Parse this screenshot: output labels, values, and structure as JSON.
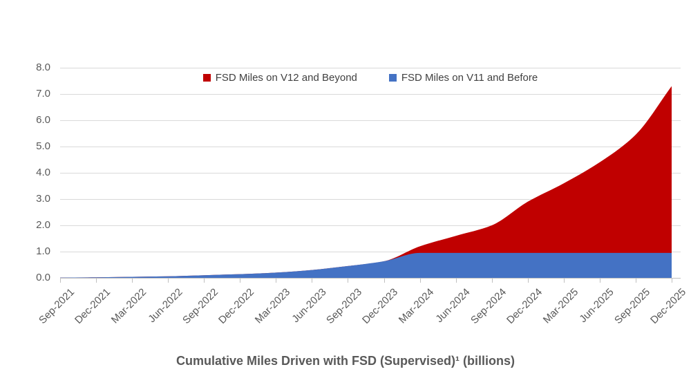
{
  "chart_data": {
    "type": "area",
    "stacked": true,
    "title": "Cumulative Miles Driven with FSD (Supervised)¹ (billions)",
    "categories": [
      "Sep-2021",
      "Dec-2021",
      "Mar-2022",
      "Jun-2022",
      "Sep-2022",
      "Dec-2022",
      "Mar-2023",
      "Jun-2023",
      "Sep-2023",
      "Dec-2023",
      "Mar-2024",
      "Jun-2024",
      "Sep-2024",
      "Dec-2024",
      "Mar-2025",
      "Jun-2025",
      "Sep-2025",
      "Dec-2025"
    ],
    "y_tick_labels": [
      "0.0",
      "1.0",
      "2.0",
      "3.0",
      "4.0",
      "5.0",
      "6.0",
      "7.0",
      "8.0"
    ],
    "ylim": [
      0,
      8
    ],
    "y_step": 1,
    "grid": true,
    "legend_position": "top-center",
    "xlabel": "",
    "ylabel": "",
    "series": [
      {
        "name": "FSD Miles on V12 and Beyond",
        "color": "#C00000",
        "stack_order": "top",
        "values": [
          0,
          0,
          0,
          0,
          0,
          0,
          0,
          0,
          0,
          0,
          0.25,
          0.65,
          1.05,
          1.95,
          2.65,
          3.45,
          4.5,
          6.35
        ]
      },
      {
        "name": "FSD Miles on V11 and Before",
        "color": "#4472C4",
        "stack_order": "bottom",
        "values": [
          0.01,
          0.02,
          0.04,
          0.06,
          0.1,
          0.14,
          0.2,
          0.3,
          0.45,
          0.63,
          0.95,
          0.95,
          0.95,
          0.95,
          0.95,
          0.95,
          0.95,
          0.95
        ]
      }
    ],
    "stacked_totals": [
      0.01,
      0.02,
      0.04,
      0.06,
      0.1,
      0.14,
      0.2,
      0.3,
      0.45,
      0.63,
      1.2,
      1.6,
      2.0,
      2.9,
      3.6,
      4.4,
      5.45,
      7.3
    ]
  },
  "colors": {
    "background": "#FFFFFF",
    "gridline": "#D9D9D9",
    "axis_line": "#BFBFBF",
    "tick_mark": "#BFBFBF",
    "axis_label_text": "#595959",
    "legend_text": "#404040",
    "title_text": "#595959",
    "series_v12_red": "#C00000",
    "series_v11_blue": "#4472C4"
  }
}
